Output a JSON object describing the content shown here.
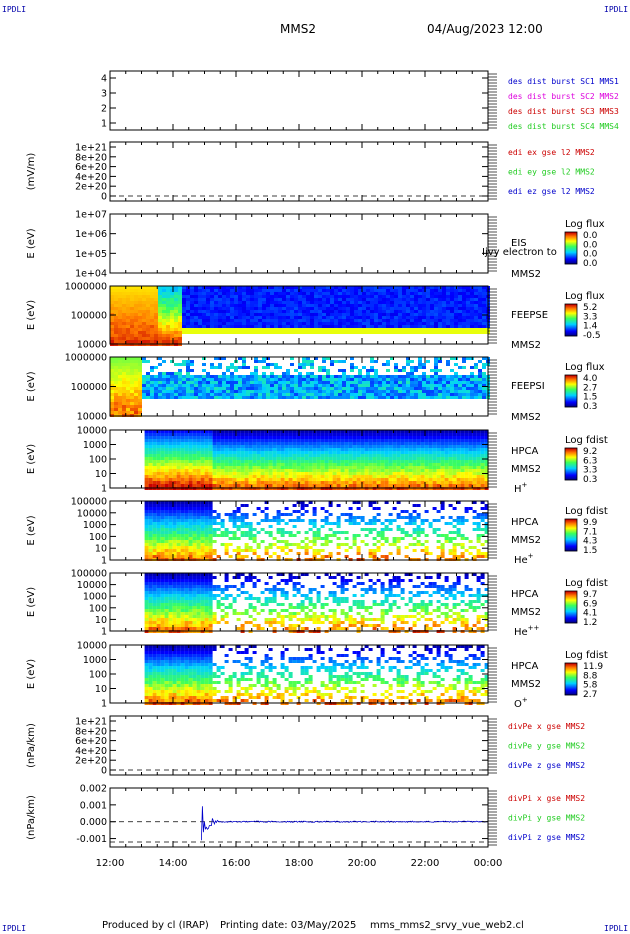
{
  "header": {
    "corner_left_top": "IPDLI",
    "corner_right_top": "IPDLI",
    "corner_left_bottom": "IPDLI",
    "corner_right_bottom": "IPDLI",
    "spacecraft": "MMS2",
    "date": "04/Aug/2023 12:00"
  },
  "footer": {
    "produced_by": "Produced by cl (IRAP)",
    "printing_date": "Printing date: 03/May/2025",
    "filename": "mms_mms2_srvy_vue_web2.cl"
  },
  "colors": {
    "red": "#cc0000",
    "magenta": "#dd00dd",
    "green": "#22cc22",
    "blue": "#0000cc"
  },
  "chart_data": {
    "type": "heatmap",
    "x_ticks": [
      "12:00",
      "14:00",
      "16:00",
      "18:00",
      "20:00",
      "22:00",
      "00:00"
    ],
    "x_range_hours": [
      12,
      24
    ],
    "panels": [
      {
        "id": "burst",
        "kind": "flags",
        "yticks": [
          "4",
          "3",
          "2",
          "1"
        ],
        "ylabel": "",
        "legend": [
          {
            "text": "des dist burst SC1 MMS1",
            "color": "blue"
          },
          {
            "text": "des dist burst SC2 MMS2",
            "color": "magenta"
          },
          {
            "text": "des dist burst SC3 MMS3",
            "color": "red"
          },
          {
            "text": "des dist burst SC4 MMS4",
            "color": "green"
          }
        ]
      },
      {
        "id": "edi",
        "kind": "lines",
        "yticks": [
          "1e+21",
          "8e+20",
          "6e+20",
          "4e+20",
          "2e+20",
          "0"
        ],
        "ylabel": "(mV/m)",
        "legend": [
          {
            "text": "edi ex gse l2 MMS2",
            "color": "red"
          },
          {
            "text": "edi ey gse l2 MMS2",
            "color": "green"
          },
          {
            "text": "edi ez gse l2 MMS2",
            "color": "blue"
          }
        ]
      },
      {
        "id": "eis",
        "kind": "spectrogram",
        "yticks": [
          "1e+07",
          "1e+06",
          "1e+05",
          "1e+04"
        ],
        "ylabel": "E (eV)",
        "label_lines": [
          "EIS",
          "MMS2"
        ],
        "overlay_text": "Ijvy electron to",
        "colorbar_title": "Log flux",
        "colorbar_ticks": [
          "0.0",
          "0.0",
          "0.0",
          "0.0"
        ],
        "occupied": [
          0,
          0
        ]
      },
      {
        "id": "feeps_e",
        "kind": "spectrogram",
        "yticks": [
          "1000000",
          "100000",
          "10000"
        ],
        "ylabel": "E (eV)",
        "label_lines": [
          "FEEPSE",
          "MMS2"
        ],
        "colorbar_title": "Log flux",
        "colorbar_ticks": [
          "5.2",
          "3.3",
          "1.4",
          "-0.5"
        ],
        "occupied": [
          12.0,
          24.0
        ]
      },
      {
        "id": "feeps_i",
        "kind": "spectrogram",
        "yticks": [
          "1000000",
          "100000",
          "10000"
        ],
        "ylabel": "E (eV)",
        "label_lines": [
          "FEEPSI",
          "MMS2"
        ],
        "colorbar_title": "Log flux",
        "colorbar_ticks": [
          "4.0",
          "2.7",
          "1.5",
          "0.3"
        ],
        "occupied": [
          12.0,
          24.0
        ]
      },
      {
        "id": "hpca_h",
        "kind": "spectrogram",
        "yticks": [
          "10000",
          "1000",
          "100",
          "10",
          "1"
        ],
        "ylabel": "E (eV)",
        "label_lines": [
          "HPCA",
          "MMS2"
        ],
        "species": "H",
        "species_sup": "+",
        "colorbar_title": "Log fdist",
        "colorbar_ticks": [
          "9.2",
          "6.3",
          "3.3",
          "0.3"
        ],
        "occupied": [
          13.1,
          24.0
        ]
      },
      {
        "id": "hpca_he",
        "kind": "spectrogram",
        "yticks": [
          "100000",
          "10000",
          "1000",
          "100",
          "10",
          "1"
        ],
        "ylabel": "E (eV)",
        "label_lines": [
          "HPCA",
          "MMS2"
        ],
        "species": "He",
        "species_sup": "+",
        "colorbar_title": "Log fdist",
        "colorbar_ticks": [
          "9.9",
          "7.1",
          "4.3",
          "1.5"
        ],
        "occupied": [
          13.1,
          24.0
        ]
      },
      {
        "id": "hpca_hepp",
        "kind": "spectrogram",
        "yticks": [
          "100000",
          "10000",
          "1000",
          "100",
          "10",
          "1"
        ],
        "ylabel": "E (eV)",
        "label_lines": [
          "HPCA",
          "MMS2"
        ],
        "species": "He",
        "species_sup": "++",
        "colorbar_title": "Log fdist",
        "colorbar_ticks": [
          "9.7",
          "6.9",
          "4.1",
          "1.2"
        ],
        "occupied": [
          13.1,
          24.0
        ]
      },
      {
        "id": "hpca_o",
        "kind": "spectrogram",
        "yticks": [
          "10000",
          "1000",
          "100",
          "10",
          "1"
        ],
        "ylabel": "E (eV)",
        "label_lines": [
          "HPCA",
          "MMS2"
        ],
        "species": "O",
        "species_sup": "+",
        "colorbar_title": "Log fdist",
        "colorbar_ticks": [
          "11.9",
          "8.8",
          "5.8",
          "2.7"
        ],
        "occupied": [
          13.1,
          24.0
        ]
      },
      {
        "id": "divpe",
        "kind": "lines",
        "yticks": [
          "1e+21",
          "8e+20",
          "6e+20",
          "4e+20",
          "2e+20",
          "0"
        ],
        "ylabel": "(nPa/km)",
        "legend": [
          {
            "text": "divPe x gse MMS2",
            "color": "red"
          },
          {
            "text": "divPe y gse MMS2",
            "color": "green"
          },
          {
            "text": "divPe z gse MMS2",
            "color": "blue"
          }
        ]
      },
      {
        "id": "divpi",
        "kind": "lines",
        "yticks": [
          "0.002",
          "0.001",
          "0.000",
          "-0.001"
        ],
        "ylabel": "(nPa/km)",
        "ylim": [
          -0.0015,
          0.002
        ],
        "legend": [
          {
            "text": "divPi x gse MMS2",
            "color": "red"
          },
          {
            "text": "divPi y gse MMS2",
            "color": "green"
          },
          {
            "text": "divPi z gse MMS2",
            "color": "blue"
          }
        ],
        "spike_time_hours": 14.9
      }
    ]
  }
}
